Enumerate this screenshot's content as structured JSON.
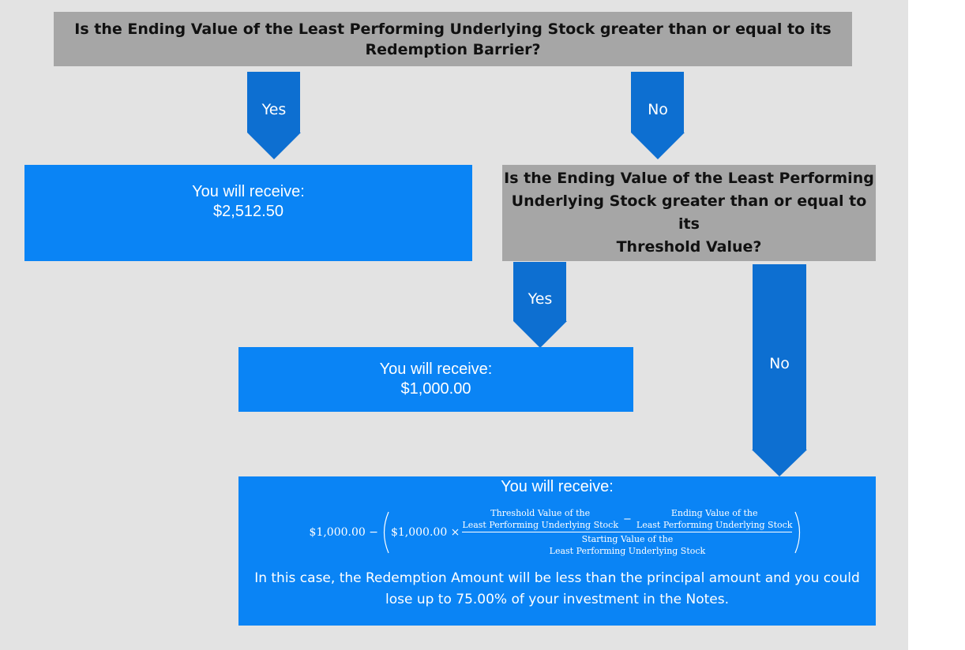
{
  "colors": {
    "question_box": "#a6a6a6",
    "result_box": "#0a84f5",
    "arrow": "#0d6fd1",
    "background": "#e3e3e3"
  },
  "q1": {
    "line1": "Is the Ending Value of the Least Performing Underlying Stock greater than or equal to its",
    "line2": "Redemption Barrier?"
  },
  "arrows": {
    "yes1": "Yes",
    "no1": "No",
    "yes2": "Yes",
    "no2": "No"
  },
  "r1": {
    "line1": "You will receive:",
    "line2": "$2,512.50"
  },
  "q2": {
    "line1": "Is the Ending Value of the Least Performing",
    "line2": "Underlying Stock greater than or equal to its",
    "line3": "Threshold Value?"
  },
  "r2": {
    "line1": "You will receive:",
    "line2": "$1,000.00"
  },
  "r3": {
    "title": "You will receive:",
    "formula": {
      "lead": "$1,000.00 −",
      "principal": "$1,000.00 ×",
      "num_left_1": "Threshold Value of the",
      "num_left_2": "Least Performing Underlying Stock",
      "minus": "−",
      "num_right_1": "Ending Value of the",
      "num_right_2": "Least Performing Underlying Stock",
      "den_1": "Starting Value of the",
      "den_2": "Least Performing Underlying Stock"
    },
    "note_line1": "In this case, the Redemption Amount will be less than the principal amount and you could",
    "note_line2": "lose up to 75.00% of your investment in the Notes."
  }
}
